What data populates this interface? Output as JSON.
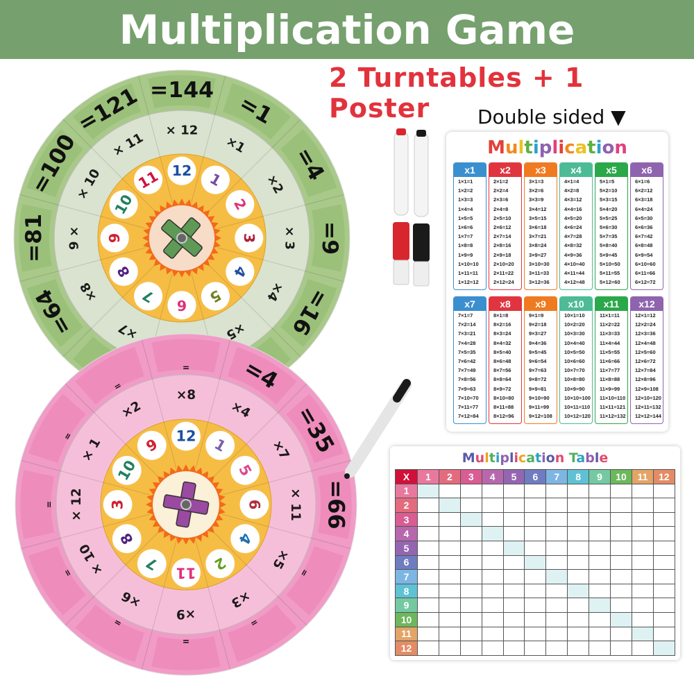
{
  "header": {
    "title": "Multiplication Game"
  },
  "subtitle": "2 Turntables + 1 Poster",
  "double_sided": "Double sided ▼",
  "colors": {
    "header_bg": "#76a06e",
    "subtitle": "#e2323c",
    "green_outer": "#a9c98a",
    "green_middle": "#d9e3cf",
    "pink_outer": "#f09cc6",
    "pink_middle": "#f6bfd9",
    "inner": "#f6bd45",
    "center_green": "#f7dcc8",
    "center_pink": "#fbf0d8"
  },
  "turntable_green": {
    "inner": [
      "12",
      "1",
      "2",
      "3",
      "4",
      "5",
      "6",
      "7",
      "8",
      "9",
      "10",
      "11"
    ],
    "inner_colors": [
      "#1b4fa0",
      "#7a4aa0",
      "#e0337a",
      "#b01e3a",
      "#2050a0",
      "#708020",
      "#e0307a",
      "#208060",
      "#502080",
      "#d02030",
      "#208060",
      "#d01040"
    ],
    "middle": [
      "× 12",
      "×1",
      "×2",
      "× 3",
      "×4",
      "×5",
      "×6",
      "×7",
      "×8",
      "9 ×",
      "× 10",
      "× 11"
    ],
    "outer": [
      "=144",
      "=1",
      "=4",
      "=9",
      "=16",
      "",
      "",
      "",
      "=64",
      "=81",
      "=100",
      "=121"
    ]
  },
  "turntable_pink": {
    "inner": [
      "12",
      "1",
      "5",
      "6",
      "4",
      "2",
      "11",
      "7",
      "8",
      "3",
      "10",
      "9"
    ],
    "inner_colors": [
      "#1b4fa0",
      "#7a60b0",
      "#e0488a",
      "#b03040",
      "#2070b0",
      "#60a020",
      "#e0307a",
      "#208060",
      "#502080",
      "#d02030",
      "#208060",
      "#d02030"
    ],
    "middle": [
      "×8",
      "×4",
      "×7",
      "× 11",
      "×5",
      "×3",
      "×9",
      "×6",
      "× 10",
      "× 12",
      "× 1",
      "×2"
    ],
    "outer": [
      "=",
      "=4",
      "=35",
      "=66",
      "=",
      "=",
      "=",
      "=",
      "=",
      "=",
      "=",
      "="
    ]
  },
  "poster_times": {
    "title": "Multiplication",
    "title_colors": [
      "#e2403a",
      "#f08a20",
      "#f0c020",
      "#60b040",
      "#30a0d0",
      "#9060b0",
      "#e04080"
    ],
    "columns": [
      {
        "header": "x1",
        "color": "#3a8fcf",
        "rows": [
          "1×1=1",
          "1×2=2",
          "1×3=3",
          "1×4=4",
          "1×5=5",
          "1×6=6",
          "1×7=7",
          "1×8=8",
          "1×9=9",
          "1×10=10",
          "1×11=11",
          "1×12=12"
        ]
      },
      {
        "header": "x2",
        "color": "#e0353f",
        "rows": [
          "2×1=2",
          "2×2=4",
          "2×3=6",
          "2×4=8",
          "2×5=10",
          "2×6=12",
          "2×7=14",
          "2×8=16",
          "2×9=18",
          "2×10=20",
          "2×11=22",
          "2×12=24"
        ]
      },
      {
        "header": "x3",
        "color": "#f07a20",
        "rows": [
          "3×1=3",
          "3×2=6",
          "3×3=9",
          "3×4=12",
          "3×5=15",
          "3×6=18",
          "3×7=21",
          "3×8=24",
          "3×9=27",
          "3×10=30",
          "3×11=33",
          "3×12=36"
        ]
      },
      {
        "header": "x4",
        "color": "#4dbb96",
        "rows": [
          "4×1=4",
          "4×2=8",
          "4×3=12",
          "4×4=16",
          "4×5=20",
          "4×6=24",
          "4×7=28",
          "4×8=32",
          "4×9=36",
          "4×10=40",
          "4×11=44",
          "4×12=48"
        ]
      },
      {
        "header": "x5",
        "color": "#2aa84a",
        "rows": [
          "5×1=5",
          "5×2=10",
          "5×3=15",
          "5×4=20",
          "5×5=25",
          "5×6=30",
          "5×7=35",
          "5×8=40",
          "5×9=45",
          "5×10=50",
          "5×11=55",
          "5×12=60"
        ]
      },
      {
        "header": "x6",
        "color": "#8e64ae",
        "rows": [
          "6×1=6",
          "6×2=12",
          "6×3=18",
          "6×4=24",
          "6×5=30",
          "6×6=36",
          "6×7=42",
          "6×8=48",
          "6×9=54",
          "6×10=60",
          "6×11=66",
          "6×12=72"
        ]
      },
      {
        "header": "x7",
        "color": "#3a8fcf",
        "rows": [
          "7×1=7",
          "7×2=14",
          "7×3=21",
          "7×4=28",
          "7×5=35",
          "7×6=42",
          "7×7=49",
          "7×8=56",
          "7×9=63",
          "7×10=70",
          "7×11=77",
          "7×12=84"
        ]
      },
      {
        "header": "x8",
        "color": "#e0353f",
        "rows": [
          "8×1=8",
          "8×2=16",
          "8×3=24",
          "8×4=32",
          "8×5=40",
          "8×6=48",
          "8×7=56",
          "8×8=64",
          "8×9=72",
          "8×10=80",
          "8×11=88",
          "8×12=96"
        ]
      },
      {
        "header": "x9",
        "color": "#f07a20",
        "rows": [
          "9×1=9",
          "9×2=18",
          "9×3=27",
          "9×4=36",
          "9×5=45",
          "9×6=54",
          "9×7=63",
          "9×8=72",
          "9×9=81",
          "9×10=90",
          "9×11=99",
          "9×12=108"
        ]
      },
      {
        "header": "x10",
        "color": "#4dbb96",
        "rows": [
          "10×1=10",
          "10×2=20",
          "10×3=30",
          "10×4=40",
          "10×5=50",
          "10×6=60",
          "10×7=70",
          "10×8=80",
          "10×9=90",
          "10×10=100",
          "10×11=110",
          "10×12=120"
        ]
      },
      {
        "header": "x11",
        "color": "#2aa84a",
        "rows": [
          "11×1=11",
          "11×2=22",
          "11×3=33",
          "11×4=44",
          "11×5=55",
          "11×6=66",
          "11×7=77",
          "11×8=88",
          "11×9=99",
          "11×10=110",
          "11×11=121",
          "11×12=132"
        ]
      },
      {
        "header": "x12",
        "color": "#8e64ae",
        "rows": [
          "12×1=12",
          "12×2=24",
          "12×3=36",
          "12×4=48",
          "12×5=60",
          "12×6=72",
          "12×7=84",
          "12×8=96",
          "12×9=108",
          "12×10=120",
          "12×11=132",
          "12×12=144"
        ]
      }
    ]
  },
  "poster_table": {
    "title": "Multiplication Table",
    "title_colors": [
      "#5a5aa8",
      "#e04a70",
      "#f0a020",
      "#50b060",
      "#30a0c0",
      "#9060b0"
    ],
    "corner": "X",
    "headers": [
      "1",
      "2",
      "3",
      "4",
      "5",
      "6",
      "7",
      "8",
      "9",
      "10",
      "11",
      "12"
    ],
    "header_colors": [
      "#e9789f",
      "#e36b7d",
      "#d95c92",
      "#b768ad",
      "#9466b2",
      "#6f7cc2",
      "#7db5e3",
      "#5fc1d4",
      "#74c9a3",
      "#6db75c",
      "#e3a467",
      "#e38c66"
    ]
  }
}
